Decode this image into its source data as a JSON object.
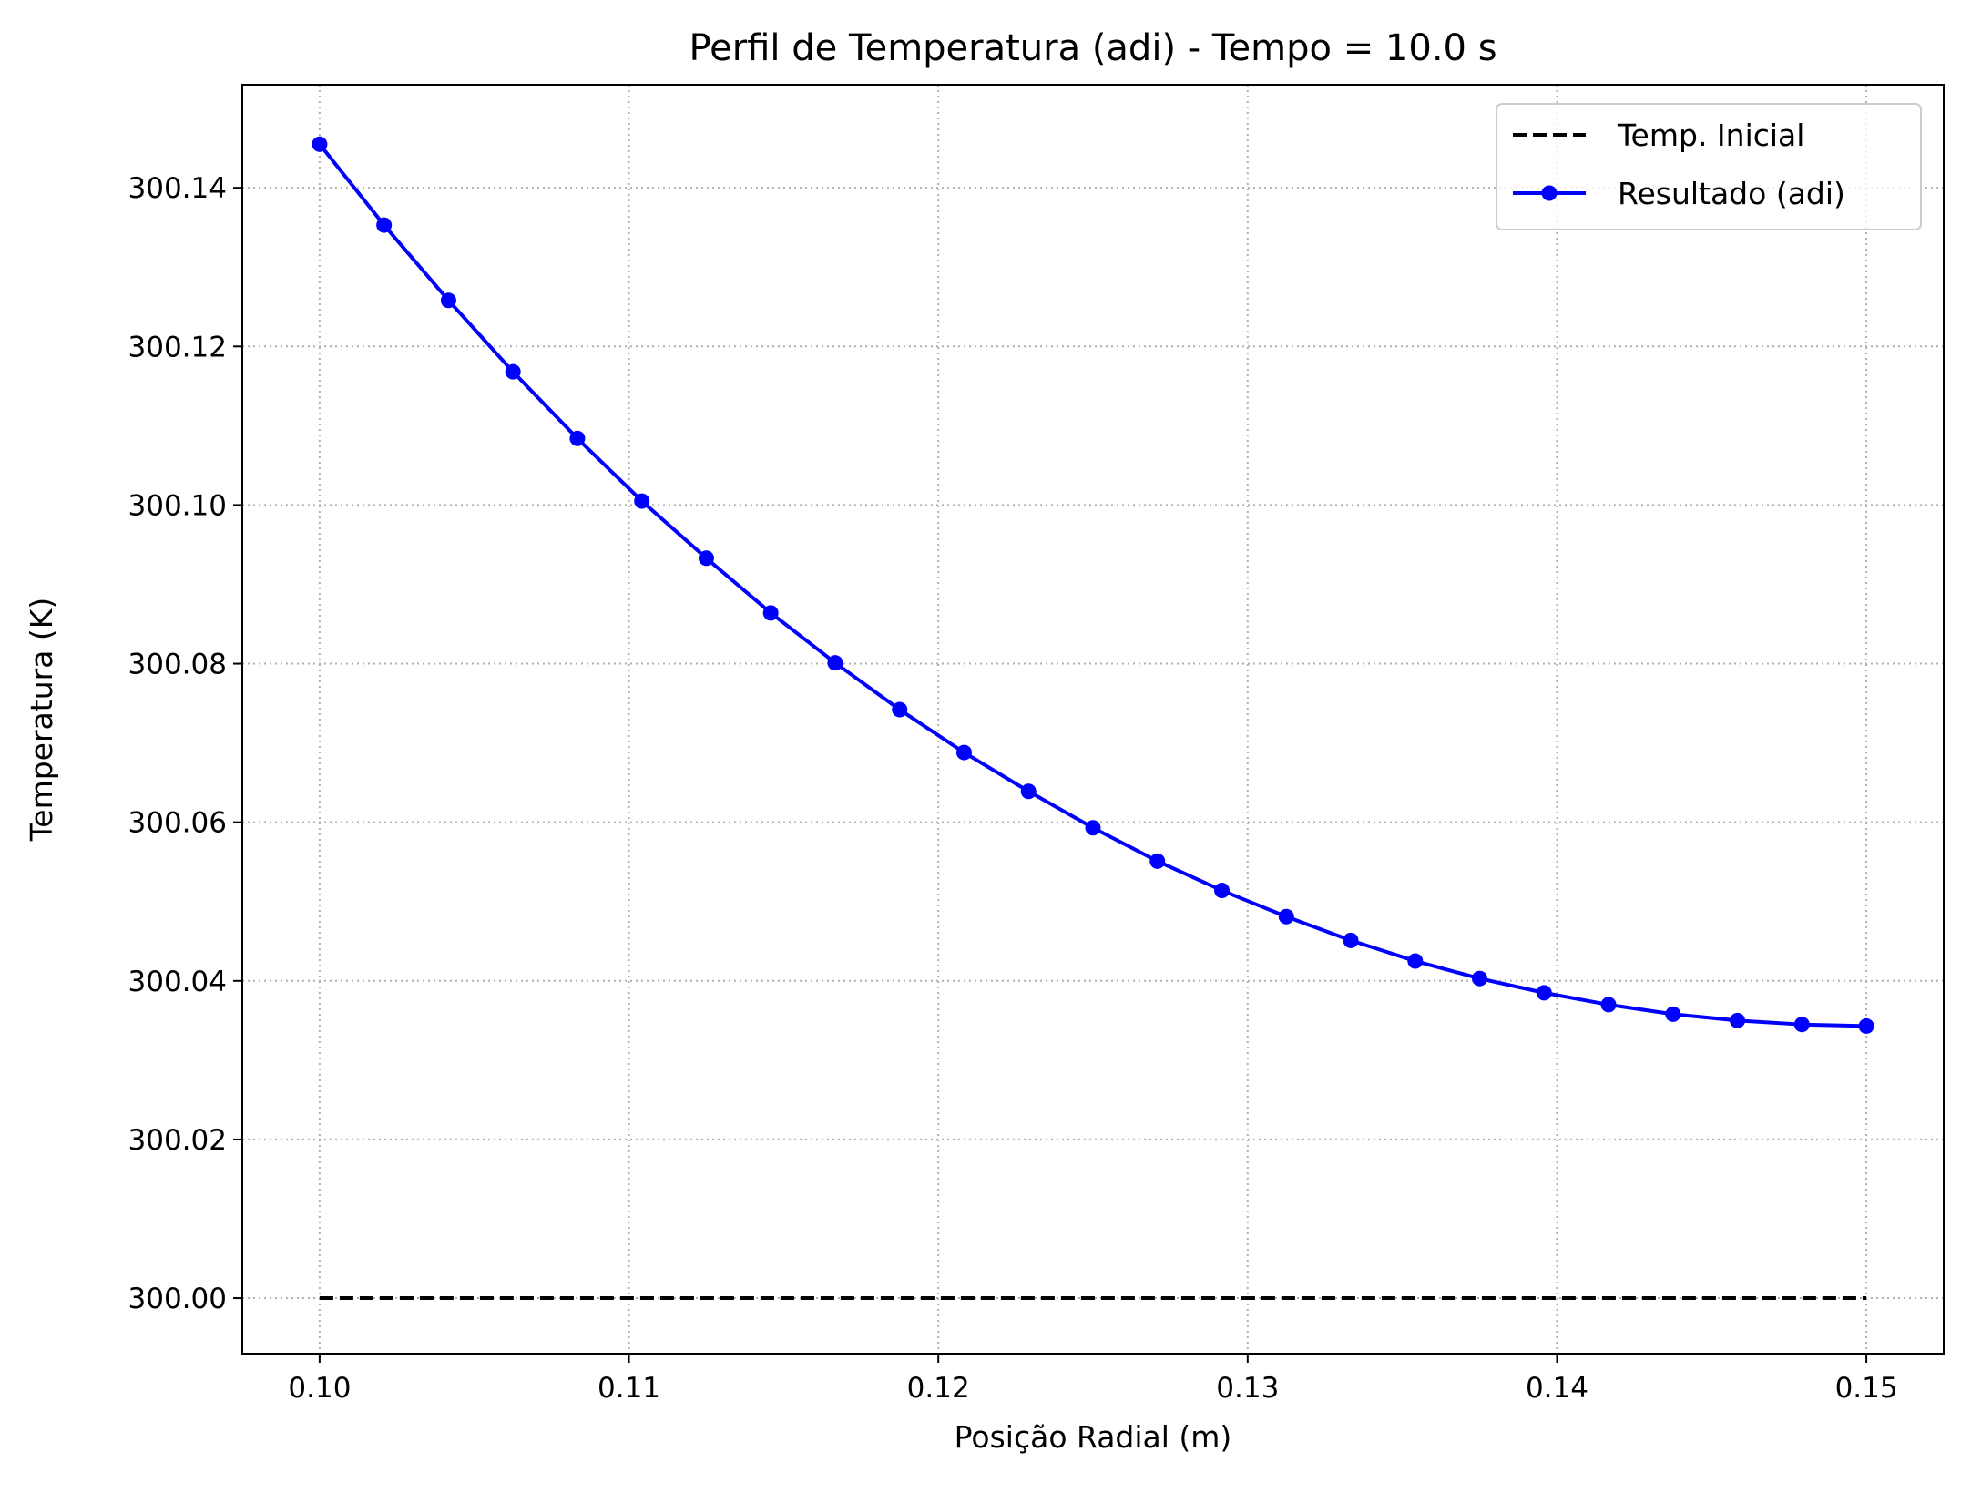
{
  "chart_data": {
    "type": "line",
    "title": "Perfil de Temperatura (adi) - Tempo = 10.0 s",
    "xlabel": "Posição Radial (m)",
    "ylabel": "Temperatura (K)",
    "xlim": [
      0.0975,
      0.1525
    ],
    "ylim": [
      299.993,
      300.153
    ],
    "x_ticks": [
      {
        "value": 0.1,
        "label": "0.10"
      },
      {
        "value": 0.11,
        "label": "0.11"
      },
      {
        "value": 0.12,
        "label": "0.12"
      },
      {
        "value": 0.13,
        "label": "0.13"
      },
      {
        "value": 0.14,
        "label": "0.14"
      },
      {
        "value": 0.15,
        "label": "0.15"
      }
    ],
    "y_ticks": [
      {
        "value": 300.0,
        "label": "300.00"
      },
      {
        "value": 300.02,
        "label": "300.02"
      },
      {
        "value": 300.04,
        "label": "300.04"
      },
      {
        "value": 300.06,
        "label": "300.06"
      },
      {
        "value": 300.08,
        "label": "300.08"
      },
      {
        "value": 300.1,
        "label": "300.10"
      },
      {
        "value": 300.12,
        "label": "300.12"
      },
      {
        "value": 300.14,
        "label": "300.14"
      }
    ],
    "grid": true,
    "legend_position": "top-right",
    "series": [
      {
        "name": "Temp. Inicial",
        "color": "#000000",
        "style": "dashed",
        "marker": "none",
        "x": [
          0.1,
          0.15
        ],
        "y": [
          300.0,
          300.0
        ]
      },
      {
        "name": "Resultado (adi)",
        "color": "#0000ff",
        "style": "solid",
        "marker": "circle",
        "x": [
          0.1,
          0.102083,
          0.104167,
          0.10625,
          0.108333,
          0.110417,
          0.1125,
          0.114583,
          0.116667,
          0.11875,
          0.120833,
          0.122917,
          0.125,
          0.127083,
          0.129167,
          0.13125,
          0.133333,
          0.135417,
          0.1375,
          0.139583,
          0.141667,
          0.14375,
          0.145833,
          0.147917,
          0.15
        ],
        "y": [
          300.1455,
          300.1353,
          300.1258,
          300.1168,
          300.1084,
          300.1005,
          300.0933,
          300.0864,
          300.0801,
          300.0742,
          300.0688,
          300.0639,
          300.0593,
          300.0551,
          300.0514,
          300.0481,
          300.0451,
          300.0425,
          300.0403,
          300.0385,
          300.037,
          300.0358,
          300.035,
          300.0345,
          300.0343
        ]
      }
    ]
  }
}
